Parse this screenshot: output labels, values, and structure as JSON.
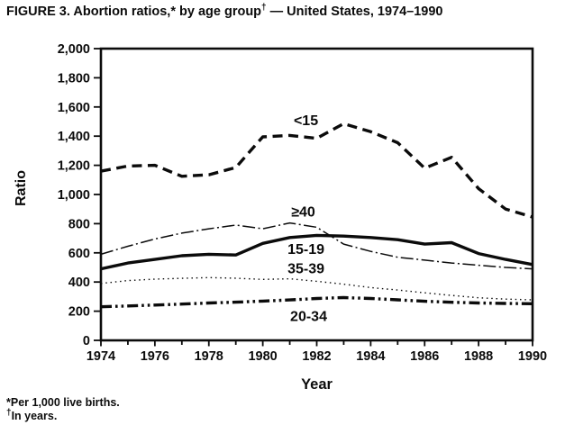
{
  "page": {
    "title": {
      "prefix": "FIGURE 3. Abortion ratios,* by age group",
      "dagger": "†",
      "suffix": " — United States, 1974–1990"
    },
    "footnotes": [
      {
        "marker": "*",
        "text": "Per 1,000 live births."
      },
      {
        "marker": "†",
        "text": "In years."
      }
    ],
    "background": "#ffffff",
    "ink": "#0b0b0b"
  },
  "chart_data": {
    "type": "line",
    "title": "Abortion ratios, by age group — United States, 1974–1990",
    "xlabel": "Year",
    "ylabel": "Ratio",
    "grid": false,
    "legend_position": "inline-labels-next-to-lines",
    "xlim": [
      1974,
      1990
    ],
    "ylim": [
      0,
      2000
    ],
    "x": [
      1974,
      1975,
      1976,
      1977,
      1978,
      1979,
      1980,
      1981,
      1982,
      1983,
      1984,
      1985,
      1986,
      1987,
      1988,
      1989,
      1990
    ],
    "y_ticks": [
      0,
      200,
      400,
      600,
      800,
      1000,
      1200,
      1400,
      1600,
      1800,
      2000
    ],
    "y_tick_labels": [
      "0",
      "200",
      "400",
      "600",
      "800",
      "1,000",
      "1,200",
      "1,400",
      "1,600",
      "1,800",
      "2,000"
    ],
    "x_labeled_ticks": [
      {
        "year": 1974,
        "label": "1974"
      },
      {
        "year": 1976,
        "label": "1976"
      },
      {
        "year": 1978,
        "label": "1978"
      },
      {
        "year": 1980,
        "label": "1980"
      },
      {
        "year": 1982,
        "label": "1982"
      },
      {
        "year": 1984,
        "label": "1984"
      },
      {
        "year": 1986,
        "label": "1986"
      },
      {
        "year": 1988,
        "label": "1988"
      },
      {
        "year": 1990,
        "label": "1990"
      }
    ],
    "series": [
      {
        "name": "<15",
        "slug": "under-15",
        "line_style": "heavy-dash",
        "values": [
          1160,
          1195,
          1200,
          1125,
          1135,
          1185,
          1395,
          1405,
          1385,
          1485,
          1430,
          1355,
          1180,
          1255,
          1040,
          900,
          845
        ],
        "label_at": {
          "year": 1981.6,
          "value": 1505
        }
      },
      {
        "name": "≥40",
        "slug": "40-and-over",
        "line_style": "thin-dash-dot",
        "values": [
          590,
          645,
          695,
          735,
          765,
          790,
          765,
          805,
          775,
          660,
          610,
          570,
          550,
          530,
          515,
          500,
          490
        ],
        "label_at": {
          "year": 1981.5,
          "value": 880
        }
      },
      {
        "name": "15-19",
        "slug": "15-19",
        "line_style": "heavy-solid",
        "values": [
          490,
          530,
          555,
          580,
          590,
          585,
          665,
          705,
          720,
          715,
          705,
          690,
          660,
          670,
          595,
          555,
          520
        ],
        "label_at": {
          "year": 1981.6,
          "value": 622
        }
      },
      {
        "name": "35-39",
        "slug": "35-39",
        "line_style": "thin-dotted",
        "values": [
          390,
          410,
          420,
          425,
          430,
          426,
          418,
          422,
          405,
          385,
          362,
          345,
          326,
          308,
          292,
          283,
          278
        ],
        "label_at": {
          "year": 1981.6,
          "value": 492
        }
      },
      {
        "name": "20-34",
        "slug": "20-34",
        "line_style": "heavy-dash-dot-dot",
        "values": [
          230,
          236,
          242,
          249,
          256,
          262,
          269,
          277,
          287,
          293,
          287,
          278,
          268,
          261,
          256,
          253,
          251
        ],
        "label_at": {
          "year": 1981.7,
          "value": 163
        }
      }
    ]
  }
}
